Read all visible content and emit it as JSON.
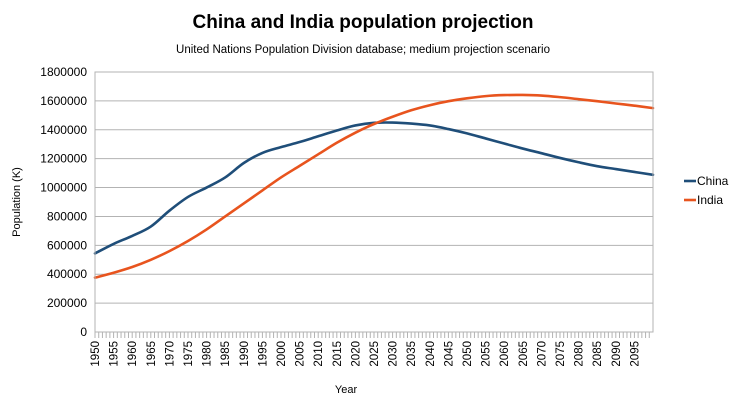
{
  "chart_data": {
    "type": "line",
    "title": "China and India population projection",
    "subtitle": "United Nations Population Division database; medium  projection scenario",
    "xlabel": "Year",
    "ylabel": "Population (K)",
    "ylim": [
      0,
      1800000
    ],
    "yticks": [
      0,
      200000,
      400000,
      600000,
      800000,
      1000000,
      1200000,
      1400000,
      1600000,
      1800000
    ],
    "xlim": [
      1950,
      2100
    ],
    "xticks": [
      1950,
      1955,
      1960,
      1965,
      1970,
      1975,
      1980,
      1985,
      1990,
      1995,
      2000,
      2005,
      2010,
      2015,
      2020,
      2025,
      2030,
      2035,
      2040,
      2045,
      2050,
      2055,
      2060,
      2065,
      2070,
      2075,
      2080,
      2085,
      2090,
      2095
    ],
    "grid": true,
    "legend_position": "right",
    "x": [
      1950,
      1955,
      1960,
      1965,
      1970,
      1975,
      1980,
      1985,
      1990,
      1995,
      2000,
      2005,
      2010,
      2015,
      2020,
      2025,
      2030,
      2035,
      2040,
      2045,
      2050,
      2055,
      2060,
      2065,
      2070,
      2075,
      2080,
      2085,
      2090,
      2095,
      2100
    ],
    "series": [
      {
        "name": "China",
        "color": "#1f4e79",
        "values": [
          544000,
          610000,
          665000,
          730000,
          840000,
          935000,
          1000000,
          1070000,
          1170000,
          1240000,
          1280000,
          1315000,
          1355000,
          1395000,
          1430000,
          1448000,
          1450000,
          1443000,
          1430000,
          1405000,
          1375000,
          1340000,
          1305000,
          1270000,
          1238000,
          1205000,
          1175000,
          1148000,
          1128000,
          1108000,
          1088000
        ]
      },
      {
        "name": "India",
        "color": "#e8541e",
        "values": [
          376000,
          410000,
          450000,
          500000,
          560000,
          630000,
          710000,
          800000,
          890000,
          980000,
          1070000,
          1150000,
          1230000,
          1310000,
          1380000,
          1440000,
          1490000,
          1535000,
          1570000,
          1598000,
          1618000,
          1633000,
          1640000,
          1641000,
          1637000,
          1626000,
          1612000,
          1598000,
          1582000,
          1567000,
          1550000
        ]
      }
    ]
  }
}
